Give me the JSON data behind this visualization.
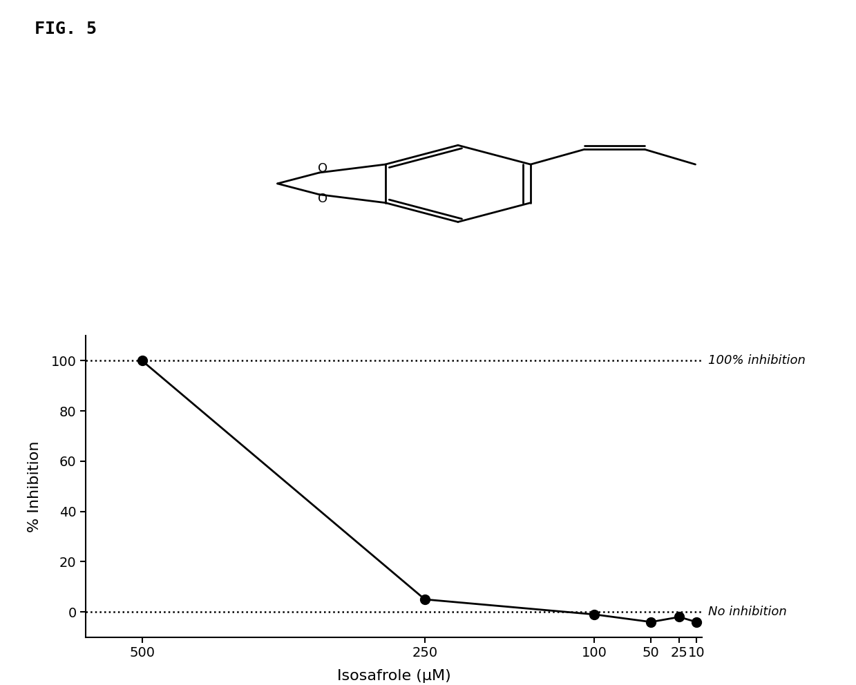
{
  "fig_label": "FIG. 5",
  "x_values": [
    500,
    250,
    100,
    50,
    25,
    10
  ],
  "y_values": [
    100,
    5,
    -1,
    -4,
    -2,
    -4
  ],
  "xlabel": "Isosafrole (μM)",
  "ylabel": "% Inhibition",
  "ylim": [
    -10,
    110
  ],
  "yticks": [
    0,
    20,
    40,
    60,
    80,
    100
  ],
  "ref_line_100": 100,
  "ref_line_0": 0,
  "ref_label_100": "100% inhibition",
  "ref_label_0": "No inhibition",
  "line_color": "#000000",
  "marker": "o",
  "marker_size": 10,
  "marker_color": "#000000",
  "dotted_linestyle": ":",
  "dotted_linewidth": 1.8,
  "ref_label_fontsize": 13,
  "axis_label_fontsize": 16,
  "tick_fontsize": 14,
  "fig_label_fontsize": 18,
  "background_color": "#ffffff"
}
